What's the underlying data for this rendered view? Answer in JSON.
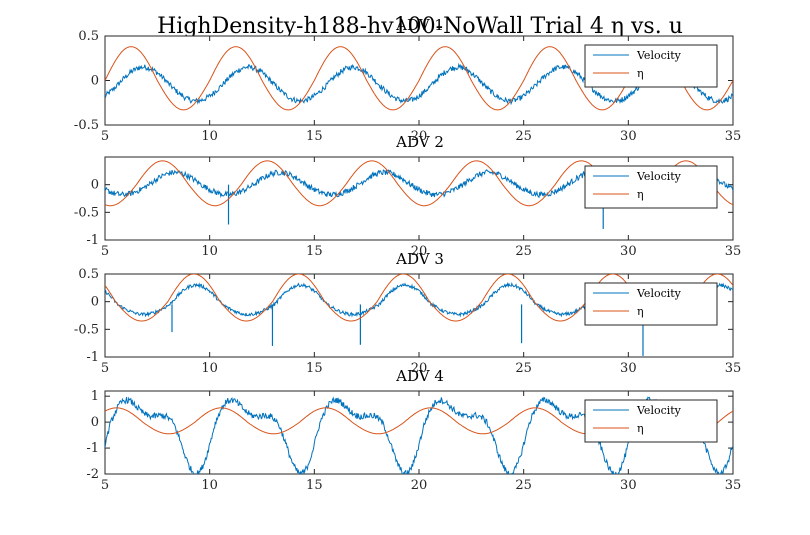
{
  "figure_title": "HighDensity-h188-hv100-NoWall Trial 4 η vs. u",
  "colors": {
    "velocity": "#0072BD",
    "eta": "#D95319",
    "axes": "#262626",
    "background": "#ffffff"
  },
  "chart_data": [
    {
      "type": "line",
      "title": "ADV 1",
      "xlim": [
        5,
        35
      ],
      "ylim": [
        -0.5,
        0.5
      ],
      "xticks": [
        "5",
        "10",
        "15",
        "20",
        "25",
        "30",
        "35"
      ],
      "yticks": [
        "0.5",
        "0",
        "-0.5"
      ],
      "legend": {
        "position": "top-right",
        "entries": [
          "Velocity",
          "η"
        ]
      },
      "series": [
        {
          "name": "Velocity",
          "kind": "velocity",
          "period": 5.0,
          "phase": 0.6,
          "amp_pos": 0.2,
          "amp_neg": 0.18,
          "offset": -0.05,
          "noise": 0.03,
          "spikes": []
        },
        {
          "name": "η",
          "kind": "eta",
          "period": 5.0,
          "phase": 0.0,
          "amp_pos": 0.38,
          "amp_neg": 0.33,
          "offset": 0.0
        }
      ]
    },
    {
      "type": "line",
      "title": "ADV 2",
      "xlim": [
        5,
        35
      ],
      "ylim": [
        -1,
        0.5
      ],
      "xticks": [
        "5",
        "10",
        "15",
        "20",
        "25",
        "30",
        "35"
      ],
      "yticks": [
        "0",
        "-0.5",
        "-1"
      ],
      "legend": {
        "position": "top-right",
        "entries": [
          "Velocity",
          "η"
        ]
      },
      "series": [
        {
          "name": "Velocity",
          "kind": "velocity",
          "period": 5.0,
          "phase": 2.1,
          "amp_pos": 0.22,
          "amp_neg": 0.18,
          "offset": 0.0,
          "noise": 0.05,
          "spikes": [
            [
              10.9,
              -0.72
            ],
            [
              28.8,
              -0.8
            ]
          ]
        },
        {
          "name": "η",
          "kind": "eta",
          "period": 5.0,
          "phase": 1.5,
          "amp_pos": 0.43,
          "amp_neg": 0.38,
          "offset": 0.0
        }
      ]
    },
    {
      "type": "line",
      "title": "ADV 3",
      "xlim": [
        5,
        35
      ],
      "ylim": [
        -1,
        0.5
      ],
      "xticks": [
        "5",
        "10",
        "15",
        "20",
        "25",
        "30",
        "35"
      ],
      "yticks": [
        "0.5",
        "0",
        "-0.5",
        "-1"
      ],
      "legend": {
        "position": "top-right",
        "entries": [
          "Velocity",
          "η"
        ]
      },
      "series": [
        {
          "name": "Velocity",
          "kind": "velocity",
          "period": 5.0,
          "phase": 3.1,
          "amp_pos": 0.35,
          "amp_neg": 0.18,
          "offset": -0.05,
          "noise": 0.03,
          "spikes": [
            [
              8.2,
              -0.55
            ],
            [
              13.0,
              -0.8
            ],
            [
              17.2,
              -0.78
            ],
            [
              24.9,
              -0.75
            ],
            [
              30.7,
              -0.98
            ]
          ]
        },
        {
          "name": "η",
          "kind": "eta",
          "period": 5.0,
          "phase": 3.0,
          "amp_pos": 0.5,
          "amp_neg": 0.35,
          "offset": 0.0
        }
      ]
    },
    {
      "type": "line",
      "title": "ADV 4",
      "xlim": [
        5,
        35
      ],
      "ylim": [
        -2,
        1.2
      ],
      "xticks": [
        "5",
        "10",
        "15",
        "20",
        "25",
        "30",
        "35"
      ],
      "yticks": [
        "1",
        "0",
        "-1",
        "-2"
      ],
      "legend": {
        "position": "top-right",
        "entries": [
          "Velocity",
          "η"
        ]
      },
      "series": [
        {
          "name": "Velocity",
          "kind": "velocity4",
          "period": 5.0,
          "phase": 0.4,
          "amp_pos": 0.9,
          "amp_neg": 1.3,
          "offset": -0.1,
          "noise": 0.12,
          "spikes": []
        },
        {
          "name": "η",
          "kind": "eta",
          "period": 5.0,
          "phase": 4.3,
          "amp_pos": 0.55,
          "amp_neg": 0.45,
          "offset": 0.0
        }
      ]
    }
  ]
}
